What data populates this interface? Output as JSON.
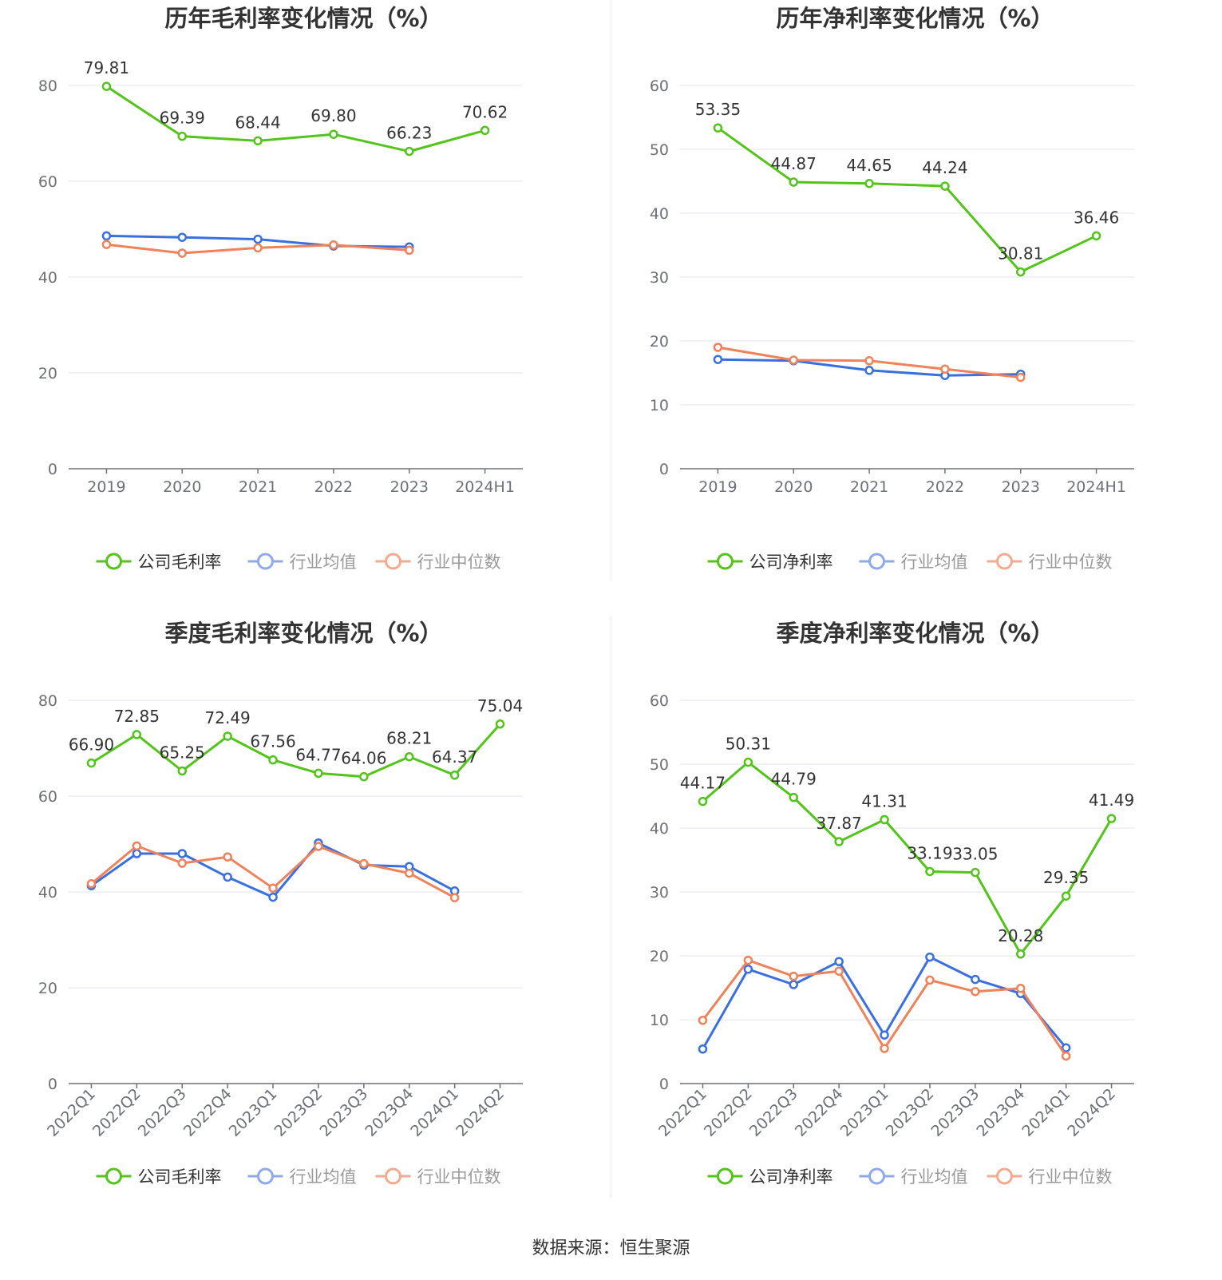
{
  "source": "数据来源：恒生聚源",
  "chart_data": [
    {
      "type": "line",
      "title": "历年毛利率变化情况（%）",
      "categories": [
        "2019",
        "2020",
        "2021",
        "2022",
        "2023",
        "2024H1"
      ],
      "ylim": [
        0,
        80
      ],
      "yticks": [
        0,
        20,
        40,
        60,
        80
      ],
      "rotate_x": false,
      "series": [
        {
          "name": "公司毛利率",
          "color": "#52c41a",
          "values": [
            79.81,
            69.39,
            68.44,
            69.8,
            66.23,
            70.62
          ],
          "labels": [
            "79.81",
            "69.39",
            "68.44",
            "69.80",
            "66.23",
            "70.62"
          ]
        },
        {
          "name": "行业均值",
          "color": "#3a6fe0",
          "values": [
            48.6,
            48.3,
            47.9,
            46.5,
            46.3,
            null
          ]
        },
        {
          "name": "行业中位数",
          "color": "#f0825a",
          "values": [
            46.8,
            45.0,
            46.1,
            46.7,
            45.6,
            null
          ]
        }
      ]
    },
    {
      "type": "line",
      "title": "历年净利率变化情况（%）",
      "categories": [
        "2019",
        "2020",
        "2021",
        "2022",
        "2023",
        "2024H1"
      ],
      "ylim": [
        0,
        60
      ],
      "yticks": [
        0,
        10,
        20,
        30,
        40,
        50,
        60
      ],
      "rotate_x": false,
      "series": [
        {
          "name": "公司净利率",
          "color": "#52c41a",
          "values": [
            53.35,
            44.87,
            44.65,
            44.24,
            30.81,
            36.46
          ],
          "labels": [
            "53.35",
            "44.87",
            "44.65",
            "44.24",
            "30.81",
            "36.46"
          ]
        },
        {
          "name": "行业均值",
          "color": "#3a6fe0",
          "values": [
            17.1,
            16.9,
            15.4,
            14.6,
            14.8,
            null
          ]
        },
        {
          "name": "行业中位数",
          "color": "#f0825a",
          "values": [
            19.0,
            17.0,
            16.9,
            15.6,
            14.3,
            null
          ]
        }
      ]
    },
    {
      "type": "line",
      "title": "季度毛利率变化情况（%）",
      "categories": [
        "2022Q1",
        "2022Q2",
        "2022Q3",
        "2022Q4",
        "2023Q1",
        "2023Q2",
        "2023Q3",
        "2023Q4",
        "2024Q1",
        "2024Q2"
      ],
      "ylim": [
        0,
        80
      ],
      "yticks": [
        0,
        20,
        40,
        60,
        80
      ],
      "rotate_x": true,
      "series": [
        {
          "name": "公司毛利率",
          "color": "#52c41a",
          "values": [
            66.9,
            72.85,
            65.25,
            72.49,
            67.56,
            64.77,
            64.06,
            68.21,
            64.37,
            75.04
          ],
          "labels": [
            "66.90",
            "72.85",
            "65.25",
            "72.49",
            "67.56",
            "64.77",
            "64.06",
            "68.21",
            "64.37",
            "75.04"
          ]
        },
        {
          "name": "行业均值",
          "color": "#3a6fe0",
          "values": [
            41.3,
            48.0,
            48.0,
            43.1,
            38.9,
            50.2,
            45.6,
            45.3,
            40.2,
            null
          ]
        },
        {
          "name": "行业中位数",
          "color": "#f0825a",
          "values": [
            41.7,
            49.6,
            46.0,
            47.3,
            40.8,
            49.5,
            45.9,
            43.9,
            38.8,
            null
          ]
        }
      ]
    },
    {
      "type": "line",
      "title": "季度净利率变化情况（%）",
      "categories": [
        "2022Q1",
        "2022Q2",
        "2022Q3",
        "2022Q4",
        "2023Q1",
        "2023Q2",
        "2023Q3",
        "2023Q4",
        "2024Q1",
        "2024Q2"
      ],
      "ylim": [
        0,
        60
      ],
      "yticks": [
        0,
        10,
        20,
        30,
        40,
        50,
        60
      ],
      "rotate_x": true,
      "series": [
        {
          "name": "公司净利率",
          "color": "#52c41a",
          "values": [
            44.17,
            50.31,
            44.79,
            37.87,
            41.31,
            33.19,
            33.05,
            20.28,
            29.35,
            41.49
          ],
          "labels": [
            "44.17",
            "50.31",
            "44.79",
            "37.87",
            "41.31",
            "33.19",
            "33.05",
            "20.28",
            "29.35",
            "41.49"
          ]
        },
        {
          "name": "行业均值",
          "color": "#3a6fe0",
          "values": [
            5.4,
            17.9,
            15.5,
            19.1,
            7.6,
            19.8,
            16.3,
            14.1,
            5.6,
            null
          ]
        },
        {
          "name": "行业中位数",
          "color": "#f0825a",
          "values": [
            9.9,
            19.3,
            16.8,
            17.6,
            5.5,
            16.2,
            14.4,
            14.9,
            4.3,
            null
          ]
        }
      ]
    }
  ]
}
